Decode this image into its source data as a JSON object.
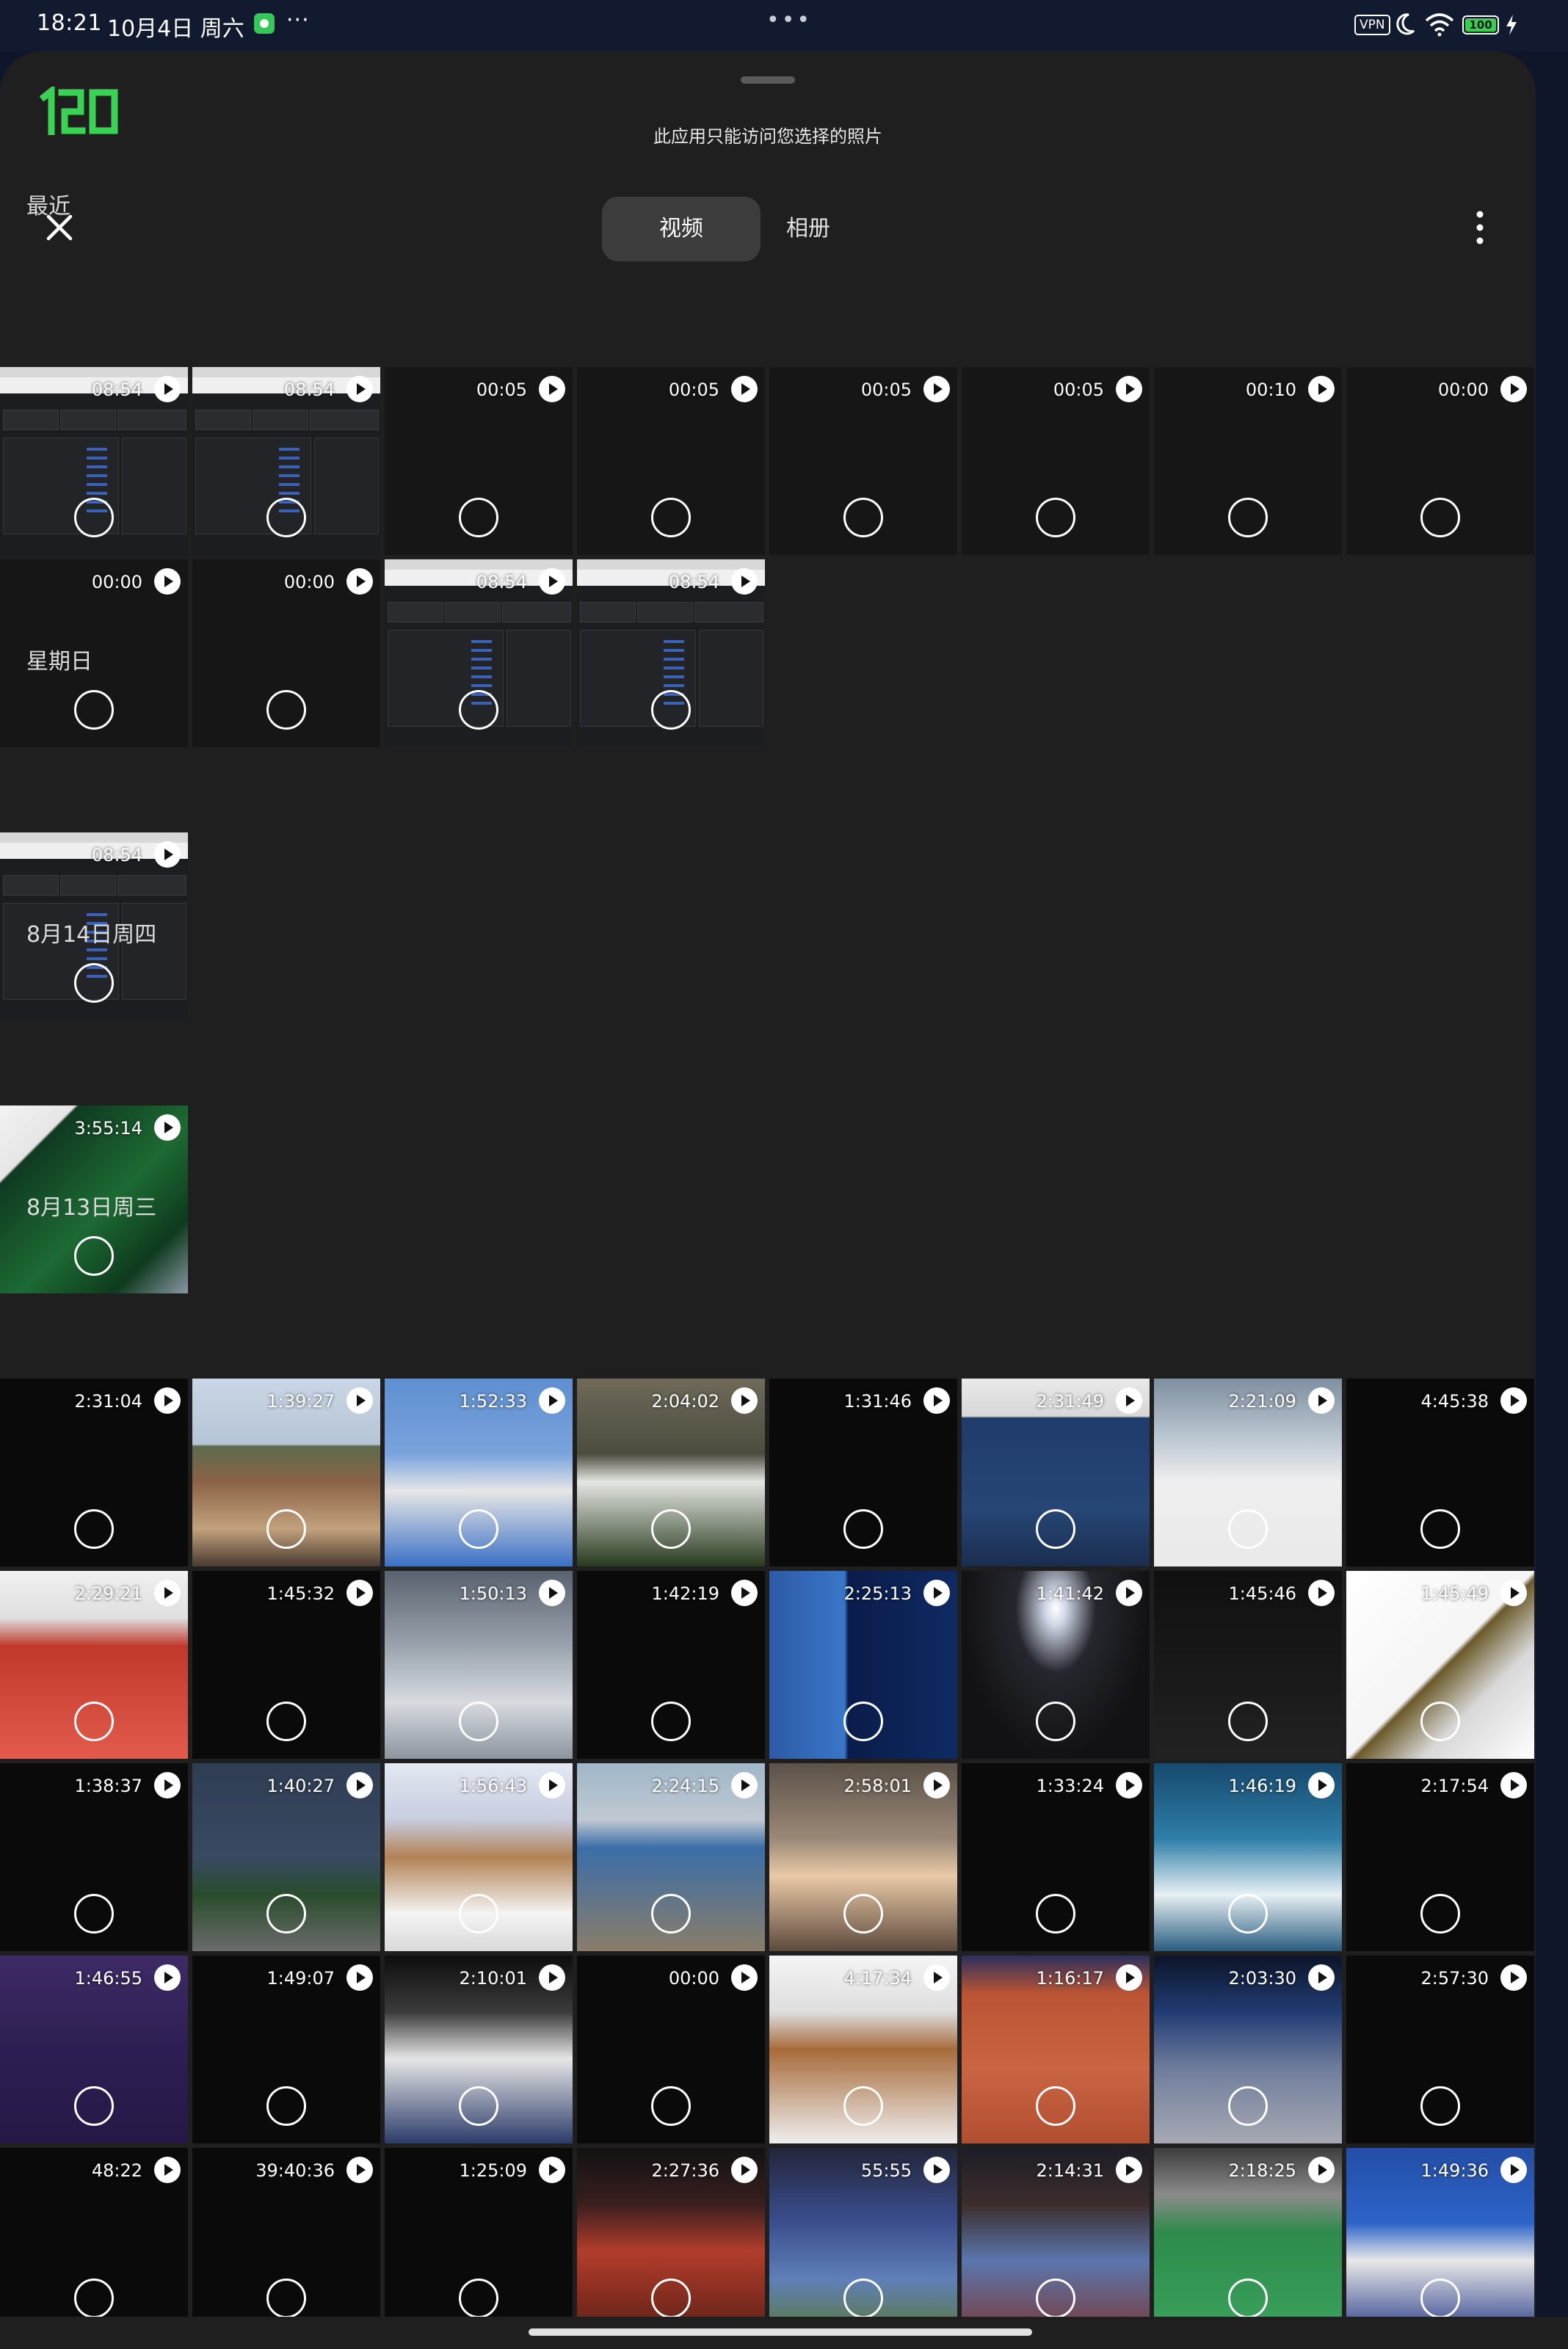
{
  "status_bar": {
    "time": "18:21",
    "date": "10月4日 周六",
    "more": "···",
    "center_grip": "•••",
    "vpn": "VPN",
    "battery": "100"
  },
  "header": {
    "logo_text": "120",
    "notice": "此应用只能访问您选择的照片",
    "tabs": [
      "视频",
      "相册"
    ],
    "active_tab": "视频",
    "accent_color": "#39d353"
  },
  "sections": [
    {
      "title": "最近",
      "items": [
        {
          "duration": "08:54",
          "look": "screen"
        },
        {
          "duration": "08:54",
          "look": "screen"
        },
        {
          "duration": "00:05",
          "look": "dark"
        },
        {
          "duration": "00:05",
          "look": "dark"
        },
        {
          "duration": "00:05",
          "look": "dark"
        },
        {
          "duration": "00:05",
          "look": "dark"
        },
        {
          "duration": "00:10",
          "look": "dark"
        },
        {
          "duration": "00:00",
          "look": "dark"
        },
        {
          "duration": "00:00",
          "look": "dark"
        },
        {
          "duration": "00:00",
          "look": "dark"
        },
        {
          "duration": "08:54",
          "look": "screen"
        },
        {
          "duration": "08:54",
          "look": "screen"
        }
      ]
    },
    {
      "title": "星期日",
      "items": [
        {
          "duration": "08:54",
          "look": "screen"
        }
      ]
    },
    {
      "title": "8月14日周四",
      "items": [
        {
          "duration": "3:55:14",
          "look": "green"
        }
      ]
    },
    {
      "title": "8月13日周三",
      "items": [
        {
          "duration": "2:31:04",
          "look": "black"
        },
        {
          "duration": "1:39:27",
          "look": "crowd"
        },
        {
          "duration": "1:52:33",
          "look": "court-blue"
        },
        {
          "duration": "2:04:02",
          "look": "room"
        },
        {
          "duration": "1:31:46",
          "look": "black"
        },
        {
          "duration": "2:31:49",
          "look": "board"
        },
        {
          "duration": "2:21:09",
          "look": "tennis-white"
        },
        {
          "duration": "4:45:38",
          "look": "black"
        },
        {
          "duration": "2:29:21",
          "look": "red"
        },
        {
          "duration": "1:45:32",
          "look": "black"
        },
        {
          "duration": "1:50:13",
          "look": "sky"
        },
        {
          "duration": "1:42:19",
          "look": "black"
        },
        {
          "duration": "2:25:13",
          "look": "stats"
        },
        {
          "duration": "1:41:42",
          "look": "stadium"
        },
        {
          "duration": "1:45:46",
          "look": "night"
        },
        {
          "duration": "1:45:49",
          "look": "leaves"
        },
        {
          "duration": "1:38:37",
          "look": "black"
        },
        {
          "duration": "1:40:27",
          "look": "scoreboard"
        },
        {
          "duration": "1:56:43",
          "look": "rafa"
        },
        {
          "duration": "2:24:15",
          "look": "aerial"
        },
        {
          "duration": "2:58:01",
          "look": "interview"
        },
        {
          "duration": "1:33:24",
          "look": "black"
        },
        {
          "duration": "1:46:19",
          "look": "wave"
        },
        {
          "duration": "2:17:54",
          "look": "black"
        },
        {
          "duration": "1:46:55",
          "look": "purple"
        },
        {
          "duration": "1:49:07",
          "look": "black"
        },
        {
          "duration": "2:10:01",
          "look": "press"
        },
        {
          "duration": "00:00",
          "look": "black"
        },
        {
          "duration": "4:17:34",
          "look": "nadal"
        },
        {
          "duration": "1:16:17",
          "look": "clay"
        },
        {
          "duration": "2:03:30",
          "look": "indoor"
        },
        {
          "duration": "2:57:30",
          "look": "black"
        },
        {
          "duration": "48:22",
          "look": "black"
        },
        {
          "duration": "39:40:36",
          "look": "black"
        },
        {
          "duration": "1:25:09",
          "look": "black"
        },
        {
          "duration": "2:27:36",
          "look": "arena"
        },
        {
          "duration": "55:55",
          "look": "hardcourt"
        },
        {
          "duration": "2:14:31",
          "look": "hardcourt2"
        },
        {
          "duration": "2:18:25",
          "look": "green-court"
        },
        {
          "duration": "1:49:36",
          "look": "bluecrowd"
        }
      ]
    }
  ]
}
